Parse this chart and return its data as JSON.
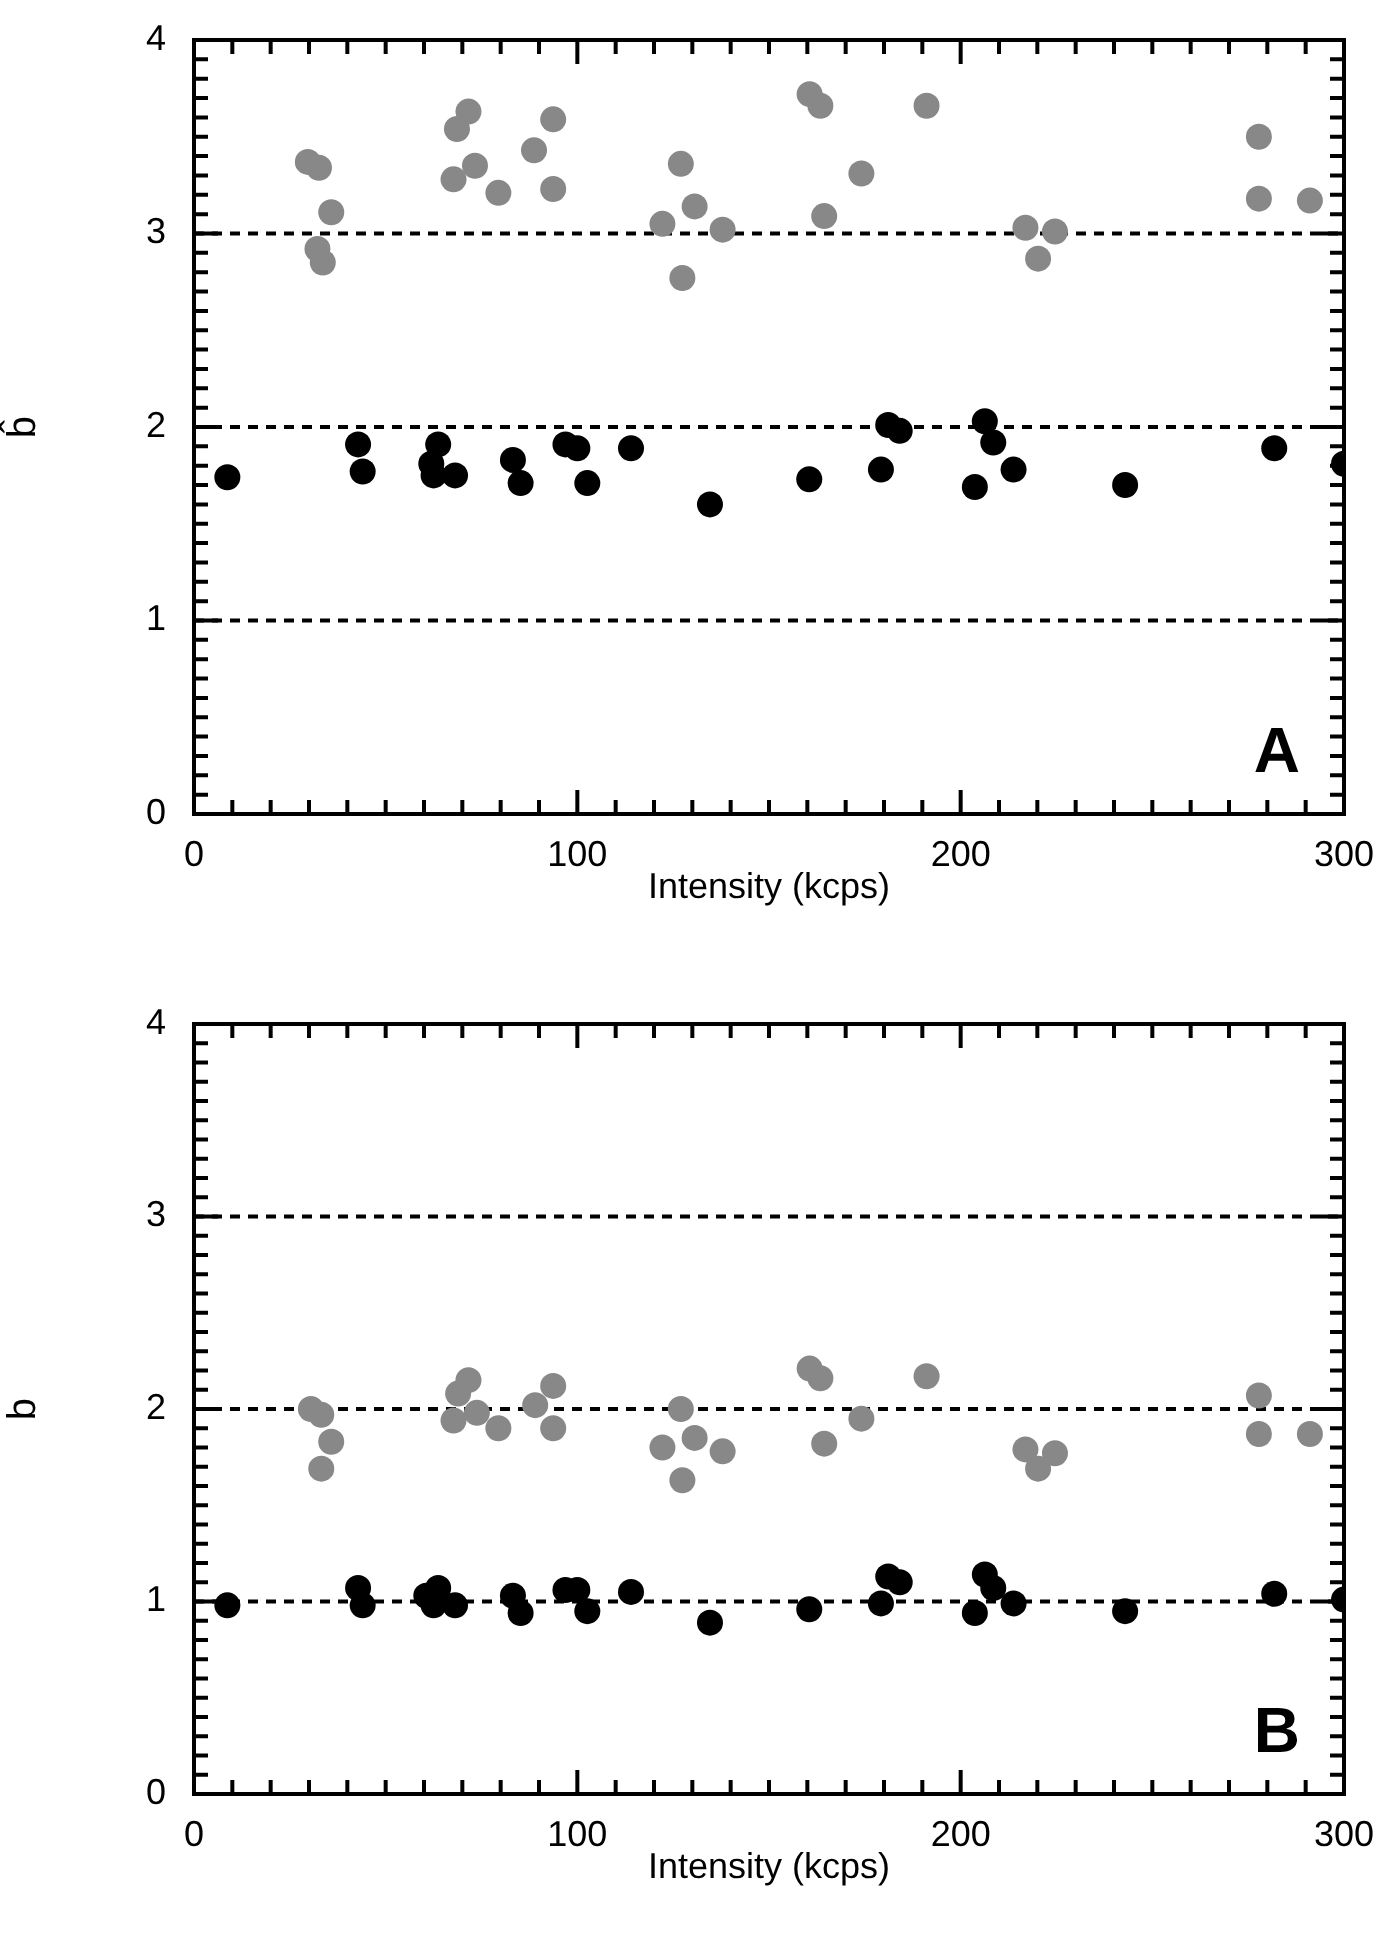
{
  "chart_data": [
    {
      "type": "scatter",
      "xlabel": "Intensity (kcps)",
      "ylabel": "b̂",
      "xlim": [
        0,
        300
      ],
      "ylim": [
        0,
        4
      ],
      "marker": "circle",
      "grid": false,
      "xticks": [
        0,
        {
          "value": 10,
          "label": null
        },
        {
          "value": 20,
          "label": null
        },
        {
          "value": 30,
          "label": null
        },
        {
          "value": 40,
          "label": null
        },
        {
          "value": 50,
          "label": null
        },
        {
          "value": 60,
          "label": null
        },
        {
          "value": 70,
          "label": null
        },
        {
          "value": 80,
          "label": null
        },
        {
          "value": 90,
          "label": null
        },
        100,
        {
          "value": 110,
          "label": null
        },
        {
          "value": 120,
          "label": null
        },
        {
          "value": 130,
          "label": null
        },
        {
          "value": 140,
          "label": null
        },
        {
          "value": 150,
          "label": null
        },
        {
          "value": 160,
          "label": null
        },
        {
          "value": 170,
          "label": null
        },
        {
          "value": 180,
          "label": null
        },
        {
          "value": 190,
          "label": null
        },
        200,
        {
          "value": 210,
          "label": null
        },
        {
          "value": 220,
          "label": null
        },
        {
          "value": 230,
          "label": null
        },
        {
          "value": 240,
          "label": null
        },
        {
          "value": 250,
          "label": null
        },
        {
          "value": 260,
          "label": null
        },
        {
          "value": 270,
          "label": null
        },
        {
          "value": 280,
          "label": null
        },
        {
          "value": 290,
          "label": null
        },
        300
      ],
      "yticks": [
        0,
        {
          "value": 0.1,
          "label": null
        },
        {
          "value": 0.2,
          "label": null
        },
        {
          "value": 0.3,
          "label": null
        },
        {
          "value": 0.4,
          "label": null
        },
        {
          "value": 0.5,
          "label": null
        },
        {
          "value": 0.6,
          "label": null
        },
        {
          "value": 0.7,
          "label": null
        },
        {
          "value": 0.8,
          "label": null
        },
        {
          "value": 0.9,
          "label": null
        },
        1,
        {
          "value": 1.1,
          "label": null
        },
        {
          "value": 1.2,
          "label": null
        },
        {
          "value": 1.3,
          "label": null
        },
        {
          "value": 1.4,
          "label": null
        },
        {
          "value": 1.5,
          "label": null
        },
        {
          "value": 1.6,
          "label": null
        },
        {
          "value": 1.7,
          "label": null
        },
        {
          "value": 1.8,
          "label": null
        },
        {
          "value": 1.9,
          "label": null
        },
        2,
        {
          "value": 2.1,
          "label": null
        },
        {
          "value": 2.2,
          "label": null
        },
        {
          "value": 2.3,
          "label": null
        },
        {
          "value": 2.4,
          "label": null
        },
        {
          "value": 2.5,
          "label": null
        },
        {
          "value": 2.6,
          "label": null
        },
        {
          "value": 2.7,
          "label": null
        },
        {
          "value": 2.8,
          "label": null
        },
        {
          "value": 2.9,
          "label": null
        },
        3,
        {
          "value": 3.1,
          "label": null
        },
        {
          "value": 3.2,
          "label": null
        },
        {
          "value": 3.3,
          "label": null
        },
        {
          "value": 3.4,
          "label": null
        },
        {
          "value": 3.5,
          "label": null
        },
        {
          "value": 3.6,
          "label": null
        },
        {
          "value": 3.7,
          "label": null
        },
        {
          "value": 3.8,
          "label": null
        },
        {
          "value": 3.9,
          "label": null
        },
        4
      ],
      "ref_lines": [
        {
          "axis": "y",
          "value": 1,
          "line_style": "dashed"
        },
        {
          "axis": "y",
          "value": 2,
          "line_style": "dashed"
        },
        {
          "axis": "y",
          "value": 3,
          "line_style": "dashed"
        }
      ],
      "annotations": [
        "A"
      ],
      "series": [
        {
          "color": "#888888",
          "x": [
            29.7,
            32.6,
            35.8,
            32.2,
            33.6,
            67.7,
            73.3,
            68.6,
            71.6,
            79.4,
            88.7,
            93.7,
            93.7,
            127,
            130.6,
            122.2,
            137.9,
            127.4,
            160.6,
            163.4,
            191.1,
            174.1,
            164.4,
            216.9,
            224.6,
            220.2,
            277.8,
            277.8,
            291.1
          ],
          "values": [
            3.37,
            3.34,
            3.11,
            2.92,
            2.85,
            3.28,
            3.35,
            3.54,
            3.63,
            3.21,
            3.43,
            3.59,
            3.23,
            3.36,
            3.14,
            3.05,
            3.02,
            2.77,
            3.72,
            3.66,
            3.66,
            3.31,
            3.09,
            3.03,
            3.01,
            2.87,
            3.5,
            3.18,
            3.17
          ]
        },
        {
          "color": "#000000",
          "x": [
            8.7,
            42.8,
            44,
            63.7,
            61.9,
            62.5,
            68.1,
            83.2,
            85.2,
            96.9,
            100,
            102.6,
            114,
            134.6,
            160.5,
            181.1,
            184.1,
            179.2,
            206.3,
            208.5,
            213.8,
            203.7,
            242.9,
            281.8,
            300
          ],
          "values": [
            1.74,
            1.91,
            1.77,
            1.91,
            1.81,
            1.75,
            1.75,
            1.83,
            1.71,
            1.91,
            1.89,
            1.71,
            1.89,
            1.6,
            1.73,
            2.01,
            1.98,
            1.78,
            2.03,
            1.92,
            1.78,
            1.69,
            1.7,
            1.89,
            1.81
          ]
        }
      ]
    },
    {
      "type": "scatter",
      "xlabel": "Intensity (kcps)",
      "ylabel": "b",
      "xlim": [
        0,
        300
      ],
      "ylim": [
        0,
        4
      ],
      "marker": "circle",
      "grid": false,
      "xticks": [
        0,
        {
          "value": 10,
          "label": null
        },
        {
          "value": 20,
          "label": null
        },
        {
          "value": 30,
          "label": null
        },
        {
          "value": 40,
          "label": null
        },
        {
          "value": 50,
          "label": null
        },
        {
          "value": 60,
          "label": null
        },
        {
          "value": 70,
          "label": null
        },
        {
          "value": 80,
          "label": null
        },
        {
          "value": 90,
          "label": null
        },
        100,
        {
          "value": 110,
          "label": null
        },
        {
          "value": 120,
          "label": null
        },
        {
          "value": 130,
          "label": null
        },
        {
          "value": 140,
          "label": null
        },
        {
          "value": 150,
          "label": null
        },
        {
          "value": 160,
          "label": null
        },
        {
          "value": 170,
          "label": null
        },
        {
          "value": 180,
          "label": null
        },
        {
          "value": 190,
          "label": null
        },
        200,
        {
          "value": 210,
          "label": null
        },
        {
          "value": 220,
          "label": null
        },
        {
          "value": 230,
          "label": null
        },
        {
          "value": 240,
          "label": null
        },
        {
          "value": 250,
          "label": null
        },
        {
          "value": 260,
          "label": null
        },
        {
          "value": 270,
          "label": null
        },
        {
          "value": 280,
          "label": null
        },
        {
          "value": 290,
          "label": null
        },
        300
      ],
      "yticks": [
        0,
        {
          "value": 0.1,
          "label": null
        },
        {
          "value": 0.2,
          "label": null
        },
        {
          "value": 0.3,
          "label": null
        },
        {
          "value": 0.4,
          "label": null
        },
        {
          "value": 0.5,
          "label": null
        },
        {
          "value": 0.6,
          "label": null
        },
        {
          "value": 0.7,
          "label": null
        },
        {
          "value": 0.8,
          "label": null
        },
        {
          "value": 0.9,
          "label": null
        },
        1,
        {
          "value": 1.1,
          "label": null
        },
        {
          "value": 1.2,
          "label": null
        },
        {
          "value": 1.3,
          "label": null
        },
        {
          "value": 1.4,
          "label": null
        },
        {
          "value": 1.5,
          "label": null
        },
        {
          "value": 1.6,
          "label": null
        },
        {
          "value": 1.7,
          "label": null
        },
        {
          "value": 1.8,
          "label": null
        },
        {
          "value": 1.9,
          "label": null
        },
        2,
        {
          "value": 2.1,
          "label": null
        },
        {
          "value": 2.2,
          "label": null
        },
        {
          "value": 2.3,
          "label": null
        },
        {
          "value": 2.4,
          "label": null
        },
        {
          "value": 2.5,
          "label": null
        },
        {
          "value": 2.6,
          "label": null
        },
        {
          "value": 2.7,
          "label": null
        },
        {
          "value": 2.8,
          "label": null
        },
        {
          "value": 2.9,
          "label": null
        },
        3,
        {
          "value": 3.1,
          "label": null
        },
        {
          "value": 3.2,
          "label": null
        },
        {
          "value": 3.3,
          "label": null
        },
        {
          "value": 3.4,
          "label": null
        },
        {
          "value": 3.5,
          "label": null
        },
        {
          "value": 3.6,
          "label": null
        },
        {
          "value": 3.7,
          "label": null
        },
        {
          "value": 3.8,
          "label": null
        },
        {
          "value": 3.9,
          "label": null
        },
        4
      ],
      "ref_lines": [
        {
          "axis": "y",
          "value": 1,
          "line_style": "dashed"
        },
        {
          "axis": "y",
          "value": 2,
          "line_style": "dashed"
        },
        {
          "axis": "y",
          "value": 3,
          "line_style": "dashed"
        }
      ],
      "annotations": [
        "B"
      ],
      "series": [
        {
          "color": "#888888",
          "x": [
            30.5,
            33.2,
            35.8,
            33.2,
            71.6,
            68.9,
            73.8,
            67.7,
            79.4,
            89,
            93.7,
            93.7,
            127,
            130.6,
            122.2,
            137.9,
            127.4,
            160.6,
            163.4,
            191.1,
            174.1,
            164.4,
            216.9,
            224.6,
            220.2,
            277.8,
            277.8,
            291.1
          ],
          "values": [
            2.0,
            1.97,
            1.83,
            1.69,
            2.15,
            2.08,
            1.98,
            1.94,
            1.9,
            2.02,
            2.12,
            1.9,
            2.0,
            1.85,
            1.8,
            1.78,
            1.63,
            2.21,
            2.16,
            2.17,
            1.95,
            1.82,
            1.79,
            1.77,
            1.69,
            2.07,
            1.87,
            1.87
          ]
        },
        {
          "color": "#000000",
          "x": [
            8.7,
            42.8,
            44,
            63.7,
            60.6,
            62.5,
            68.1,
            83.2,
            85.2,
            96.9,
            100,
            102.6,
            114,
            134.6,
            160.5,
            181.1,
            184.1,
            179.2,
            206.3,
            208.5,
            213.8,
            203.7,
            242.9,
            281.8,
            300
          ],
          "values": [
            0.98,
            1.07,
            0.98,
            1.07,
            1.03,
            0.98,
            0.98,
            1.03,
            0.94,
            1.06,
            1.06,
            0.95,
            1.05,
            0.89,
            0.96,
            1.13,
            1.1,
            0.99,
            1.14,
            1.07,
            0.99,
            0.94,
            0.95,
            1.04,
            1.01
          ]
        }
      ]
    }
  ]
}
